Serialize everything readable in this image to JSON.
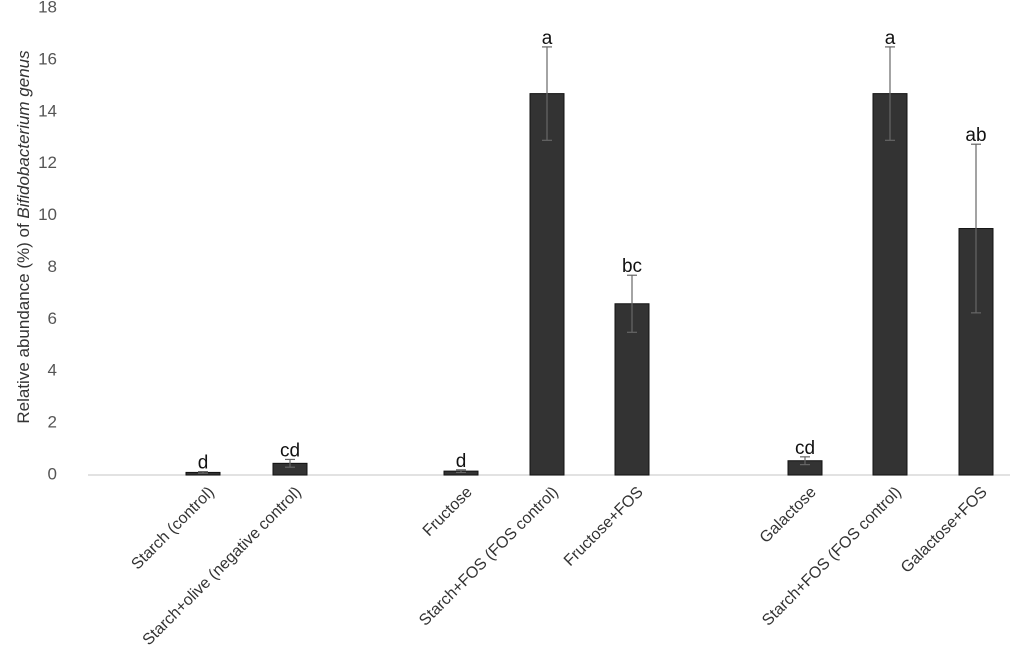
{
  "chart_data": {
    "type": "bar",
    "ylabel_prefix": "Relative abundance (%) of ",
    "ylabel_italic": "Bifidobacterium genus",
    "ylim": [
      0,
      18
    ],
    "yticks": [
      0,
      2,
      4,
      6,
      8,
      10,
      12,
      14,
      16,
      18
    ],
    "grid": false,
    "legend": "none",
    "bar_color": "#333333",
    "bars": [
      {
        "category": "Starch (control)",
        "value": 0.1,
        "error": 0.03,
        "letter": "d"
      },
      {
        "category": "Starch+olive (negative control)",
        "value": 0.45,
        "error": 0.15,
        "letter": "cd"
      },
      {
        "category": "Fructose",
        "value": 0.15,
        "error": 0.05,
        "letter": "d"
      },
      {
        "category": "Starch+FOS (FOS control)",
        "value": 14.7,
        "error": 1.8,
        "letter": "a"
      },
      {
        "category": "Fructose+FOS",
        "value": 6.6,
        "error": 1.1,
        "letter": "bc"
      },
      {
        "category": "Galactose",
        "value": 0.55,
        "error": 0.15,
        "letter": "cd"
      },
      {
        "category": "Starch+FOS (FOS control)",
        "value": 14.7,
        "error": 1.8,
        "letter": "a"
      },
      {
        "category": "Galactose+FOS",
        "value": 9.5,
        "error": 3.25,
        "letter": "ab"
      }
    ]
  }
}
